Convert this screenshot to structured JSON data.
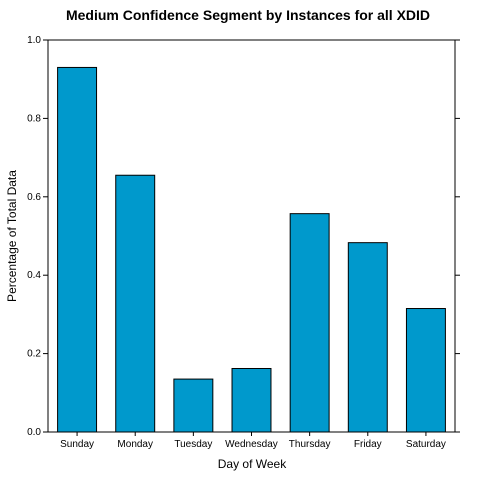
{
  "chart_data": {
    "type": "bar",
    "title": "Medium Confidence Segment by Instances for all XDID",
    "xlabel": "Day of Week",
    "ylabel": "Percentage of Total Data",
    "categories": [
      "Sunday",
      "Monday",
      "Tuesday",
      "Wednesday",
      "Thursday",
      "Friday",
      "Saturday"
    ],
    "values": [
      0.93,
      0.655,
      0.135,
      0.162,
      0.557,
      0.483,
      0.315
    ],
    "ylim": [
      0,
      1
    ],
    "yticks": [
      "0.0",
      "0.2",
      "0.4",
      "0.6",
      "0.8",
      "1.0"
    ],
    "bar_color": "#0099cc",
    "grid": false,
    "legend": "none"
  }
}
